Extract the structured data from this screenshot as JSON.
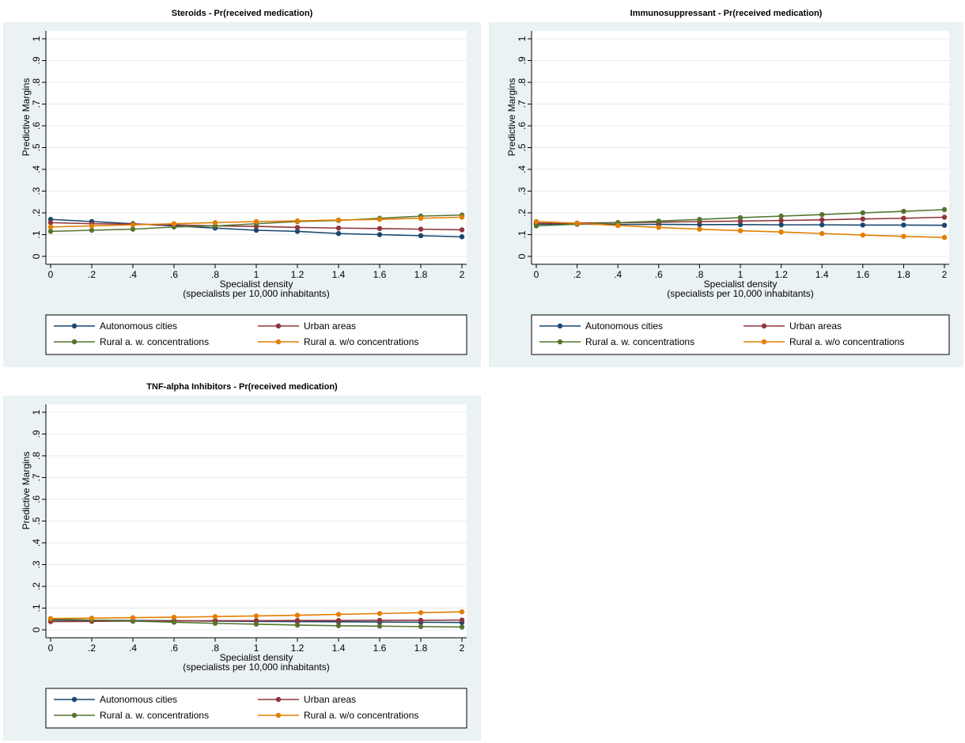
{
  "chart_data": [
    {
      "type": "line",
      "title": "Steroids - Pr(received medication)",
      "xlabel": "Specialist density",
      "xlabel2": "(specialists per 10,000 inhabitants)",
      "ylabel": "Predictive Margins",
      "xlim": [
        0,
        2
      ],
      "ylim": [
        0,
        1
      ],
      "x": [
        0,
        0.2,
        0.4,
        0.6,
        0.8,
        1,
        1.2,
        1.4,
        1.6,
        1.8,
        2
      ],
      "x_tick_labels": [
        "0",
        ".2",
        ".4",
        ".6",
        ".8",
        "1",
        "1.2",
        "1.4",
        "1.6",
        "1.8",
        "2"
      ],
      "y_tick_labels": [
        "0",
        ".1",
        ".2",
        ".3",
        ".4",
        ".5",
        ".6",
        ".7",
        ".8",
        ".9",
        "1"
      ],
      "grid": true,
      "legend_position": "bottom",
      "series": [
        {
          "name": "Autonomous cities",
          "color": "#1a476f",
          "values": [
            0.17,
            0.16,
            0.15,
            0.14,
            0.13,
            0.12,
            0.115,
            0.105,
            0.1,
            0.095,
            0.09
          ]
        },
        {
          "name": "Urban areas",
          "color": "#90353b",
          "values": [
            0.155,
            0.15,
            0.148,
            0.145,
            0.14,
            0.138,
            0.133,
            0.13,
            0.128,
            0.125,
            0.122
          ]
        },
        {
          "name": "Rural a. w. concentrations",
          "color": "#55752f",
          "values": [
            0.115,
            0.12,
            0.125,
            0.135,
            0.14,
            0.15,
            0.16,
            0.165,
            0.175,
            0.185,
            0.19
          ]
        },
        {
          "name": "Rural a. w/o concentrations",
          "color": "#e37e00",
          "values": [
            0.135,
            0.14,
            0.145,
            0.15,
            0.155,
            0.16,
            0.163,
            0.167,
            0.17,
            0.175,
            0.18
          ]
        }
      ]
    },
    {
      "type": "line",
      "title": "Immunosuppressant - Pr(received medication)",
      "xlabel": "Specialist density",
      "xlabel2": "(specialists per 10,000 inhabitants)",
      "ylabel": "Predictive Margins",
      "xlim": [
        0,
        2
      ],
      "ylim": [
        0,
        1
      ],
      "x": [
        0,
        0.2,
        0.4,
        0.6,
        0.8,
        1,
        1.2,
        1.4,
        1.6,
        1.8,
        2
      ],
      "x_tick_labels": [
        "0",
        ".2",
        ".4",
        ".6",
        ".8",
        "1",
        "1.2",
        "1.4",
        "1.6",
        "1.8",
        "2"
      ],
      "y_tick_labels": [
        "0",
        ".1",
        ".2",
        ".3",
        ".4",
        ".5",
        ".6",
        ".7",
        ".8",
        ".9",
        "1"
      ],
      "grid": true,
      "legend_position": "bottom",
      "series": [
        {
          "name": "Autonomous cities",
          "color": "#1a476f",
          "values": [
            0.148,
            0.148,
            0.147,
            0.147,
            0.146,
            0.146,
            0.145,
            0.145,
            0.144,
            0.144,
            0.143
          ]
        },
        {
          "name": "Urban areas",
          "color": "#90353b",
          "values": [
            0.152,
            0.153,
            0.155,
            0.157,
            0.16,
            0.162,
            0.165,
            0.168,
            0.172,
            0.175,
            0.18
          ]
        },
        {
          "name": "Rural a. w. concentrations",
          "color": "#55752f",
          "values": [
            0.14,
            0.148,
            0.155,
            0.162,
            0.17,
            0.178,
            0.185,
            0.192,
            0.2,
            0.207,
            0.215
          ]
        },
        {
          "name": "Rural a. w/o concentrations",
          "color": "#e37e00",
          "values": [
            0.16,
            0.152,
            0.142,
            0.133,
            0.125,
            0.118,
            0.112,
            0.105,
            0.098,
            0.092,
            0.087
          ]
        }
      ]
    },
    {
      "type": "line",
      "title": "TNF-alpha Inhibitors - Pr(received medication)",
      "xlabel": "Specialist density",
      "xlabel2": "(specialists per 10,000 inhabitants)",
      "ylabel": "Predictive Margins",
      "xlim": [
        0,
        2
      ],
      "ylim": [
        0,
        1
      ],
      "x": [
        0,
        0.2,
        0.4,
        0.6,
        0.8,
        1,
        1.2,
        1.4,
        1.6,
        1.8,
        2
      ],
      "x_tick_labels": [
        "0",
        ".2",
        ".4",
        ".6",
        ".8",
        "1",
        "1.2",
        "1.4",
        "1.6",
        "1.8",
        "2"
      ],
      "y_tick_labels": [
        "0",
        ".1",
        ".2",
        ".3",
        ".4",
        ".5",
        ".6",
        ".7",
        ".8",
        ".9",
        "1"
      ],
      "grid": true,
      "legend_position": "bottom",
      "series": [
        {
          "name": "Autonomous cities",
          "color": "#1a476f",
          "values": [
            0.045,
            0.044,
            0.043,
            0.042,
            0.04,
            0.039,
            0.038,
            0.037,
            0.036,
            0.035,
            0.034
          ]
        },
        {
          "name": "Urban areas",
          "color": "#90353b",
          "values": [
            0.038,
            0.039,
            0.04,
            0.041,
            0.042,
            0.042,
            0.043,
            0.043,
            0.044,
            0.044,
            0.045
          ]
        },
        {
          "name": "Rural a. w. concentrations",
          "color": "#55752f",
          "values": [
            0.05,
            0.045,
            0.04,
            0.035,
            0.03,
            0.026,
            0.022,
            0.019,
            0.017,
            0.015,
            0.013
          ]
        },
        {
          "name": "Rural a. w/o concentrations",
          "color": "#e37e00",
          "values": [
            0.052,
            0.054,
            0.056,
            0.058,
            0.061,
            0.064,
            0.067,
            0.071,
            0.075,
            0.079,
            0.083
          ]
        }
      ]
    }
  ]
}
